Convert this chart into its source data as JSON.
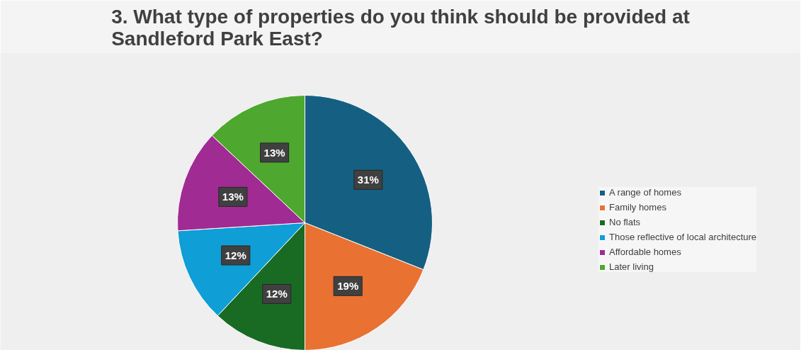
{
  "chart_data": {
    "type": "pie",
    "title": "3. What type of properties do you think should be provided at Sandleford Park East?",
    "categories": [
      "A range of homes",
      "Family homes",
      "No flats",
      "Those reflective of local architecture",
      "Affordable homes",
      "Later living"
    ],
    "values": [
      31,
      19,
      12,
      12,
      13,
      13
    ],
    "colors": [
      "#156082",
      "#e97132",
      "#196b24",
      "#0f9ed5",
      "#a02b93",
      "#4ea72e"
    ],
    "value_labels": [
      "31%",
      "19%",
      "12%",
      "12%",
      "13%",
      "13%"
    ],
    "legend": "right"
  }
}
